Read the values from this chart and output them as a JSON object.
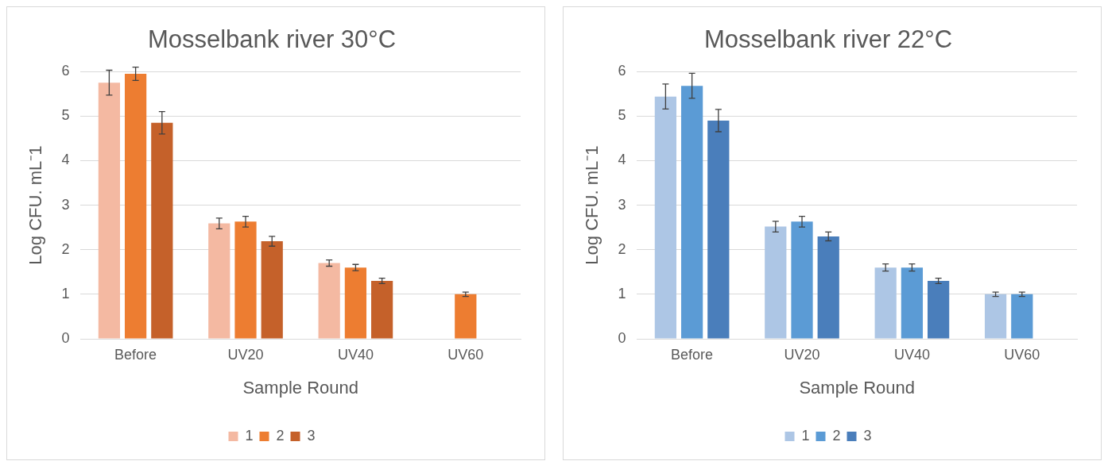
{
  "chart_data": [
    {
      "type": "bar",
      "title": "Mosselbank river 30°C",
      "xlabel": "Sample Round",
      "ylabel": "Log CFU. mL⁻1",
      "categories": [
        "Before",
        "UV20",
        "UV40",
        "UV60"
      ],
      "ylim": [
        0,
        6
      ],
      "yticks": [
        0,
        1,
        2,
        3,
        4,
        5,
        6
      ],
      "grid": "y",
      "legend": "bottom",
      "series": [
        {
          "name": "1",
          "color": "#f4b9a2",
          "values": [
            5.75,
            2.59,
            1.7,
            null
          ],
          "errors": [
            0.28,
            0.12,
            0.07,
            null
          ]
        },
        {
          "name": "2",
          "color": "#ed7d31",
          "values": [
            5.95,
            2.63,
            1.6,
            1.0
          ],
          "errors": [
            0.15,
            0.12,
            0.07,
            0.05
          ]
        },
        {
          "name": "3",
          "color": "#c5612a",
          "values": [
            4.85,
            2.19,
            1.3,
            null
          ],
          "errors": [
            0.25,
            0.11,
            0.06,
            null
          ]
        }
      ]
    },
    {
      "type": "bar",
      "title": "Mosselbank river 22°C",
      "xlabel": "Sample Round",
      "ylabel": "Log CFU. mL⁻1",
      "categories": [
        "Before",
        "UV20",
        "UV40",
        "UV60"
      ],
      "ylim": [
        0,
        6
      ],
      "yticks": [
        0,
        1,
        2,
        3,
        4,
        5,
        6
      ],
      "grid": "y",
      "legend": "bottom",
      "series": [
        {
          "name": "1",
          "color": "#adc6e5",
          "values": [
            5.44,
            2.52,
            1.6,
            1.0
          ],
          "errors": [
            0.28,
            0.12,
            0.08,
            0.05
          ]
        },
        {
          "name": "2",
          "color": "#5b9bd5",
          "values": [
            5.68,
            2.63,
            1.6,
            1.0
          ],
          "errors": [
            0.28,
            0.12,
            0.08,
            0.05
          ]
        },
        {
          "name": "3",
          "color": "#4a7ebb",
          "values": [
            4.9,
            2.3,
            1.3,
            0
          ],
          "errors": [
            0.25,
            0.1,
            0.06,
            null
          ]
        }
      ]
    }
  ]
}
